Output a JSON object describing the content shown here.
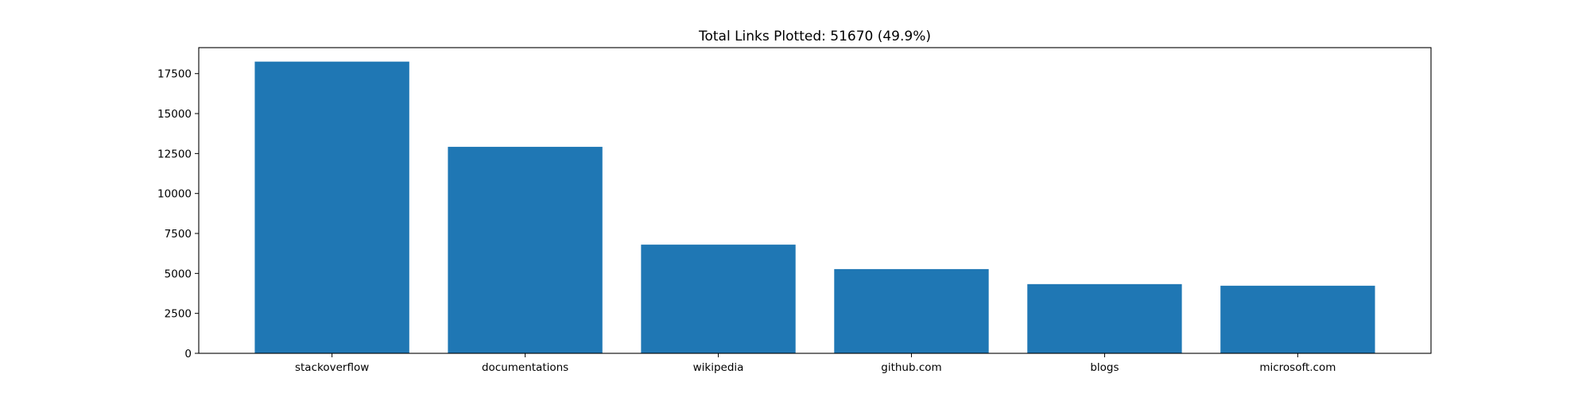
{
  "chart_data": {
    "type": "bar",
    "title": "Total Links Plotted: 51670 (49.9%)",
    "xlabel": "",
    "ylabel": "",
    "categories": [
      "stackoverflow",
      "documentations",
      "wikipedia",
      "github.com",
      "blogs",
      "microsoft.com"
    ],
    "values": [
      18250,
      12920,
      6800,
      5270,
      4330,
      4230
    ],
    "ylim": [
      0,
      19125
    ],
    "yticks": [
      0,
      2500,
      5000,
      7500,
      10000,
      12500,
      15000,
      17500
    ],
    "ytick_labels": [
      "0",
      "2500",
      "5000",
      "7500",
      "10000",
      "12500",
      "15000",
      "17500"
    ],
    "bar_color": "#1f77b4",
    "grid": false,
    "legend": "none"
  }
}
